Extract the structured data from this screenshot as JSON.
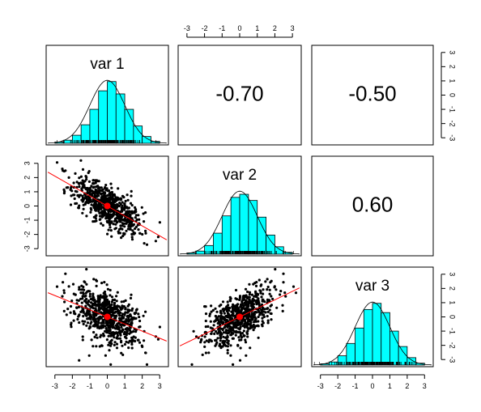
{
  "chart_data": {
    "type": "scatter-matrix",
    "variables": [
      "var 1",
      "var 2",
      "var 3"
    ],
    "correlations": [
      {
        "row": 0,
        "col": 1,
        "label": "-0.70",
        "value": -0.7
      },
      {
        "row": 0,
        "col": 2,
        "label": "-0.50",
        "value": -0.5
      },
      {
        "row": 1,
        "col": 2,
        "label": "0.60",
        "value": 0.6
      }
    ],
    "axis_range": [
      -3.5,
      3.5
    ],
    "tick_values": [
      -3,
      -2,
      -1,
      0,
      1,
      2,
      3
    ],
    "tick_labels": [
      "-3",
      "-2",
      "-1",
      "0",
      "1",
      "2",
      "3"
    ],
    "diagonal": {
      "type": "histogram_with_density",
      "bin_edges": [
        -3,
        -2.5,
        -2,
        -1.5,
        -1,
        -0.5,
        0,
        0.5,
        1,
        1.5,
        2,
        2.5,
        3
      ],
      "histograms": [
        {
          "variable": "var 1",
          "relative_heights": [
            0.02,
            0.05,
            0.13,
            0.3,
            0.55,
            0.85,
            1.0,
            0.8,
            0.55,
            0.28,
            0.11,
            0.03
          ]
        },
        {
          "variable": "var 2",
          "relative_heights": [
            0.02,
            0.05,
            0.14,
            0.34,
            0.62,
            0.92,
            0.97,
            0.87,
            0.6,
            0.31,
            0.12,
            0.03
          ]
        },
        {
          "variable": "var 3",
          "relative_heights": [
            0.02,
            0.05,
            0.15,
            0.35,
            0.6,
            0.9,
            1.0,
            0.85,
            0.55,
            0.3,
            0.12,
            0.03
          ]
        }
      ]
    },
    "scatter": {
      "n_points": 700,
      "regression_lines": [
        {
          "row": 1,
          "col": 0,
          "slope": -0.7,
          "intercept": 0
        },
        {
          "row": 2,
          "col": 0,
          "slope": -0.5,
          "intercept": 0
        },
        {
          "row": 2,
          "col": 1,
          "slope": 0.6,
          "intercept": 0
        }
      ],
      "mean_point": [
        0,
        0
      ]
    },
    "colors": {
      "hist_fill": "#00ffff",
      "points": "#000000",
      "regression": "#ff0000",
      "frame": "#000000"
    }
  }
}
